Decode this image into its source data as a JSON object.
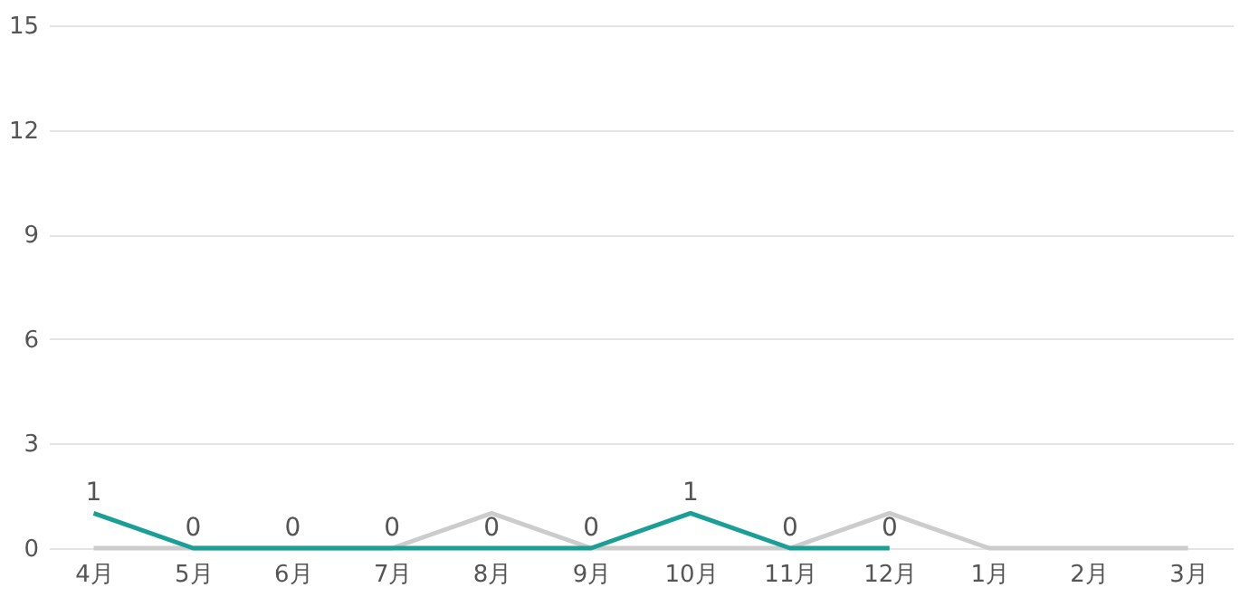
{
  "chart_data": {
    "type": "line",
    "categories": [
      "4月",
      "5月",
      "6月",
      "7月",
      "8月",
      "9月",
      "10月",
      "11月",
      "12月",
      "1月",
      "2月",
      "3月"
    ],
    "series": [
      {
        "color": "#cccccc",
        "values": [
          0,
          0,
          0,
          0,
          1,
          0,
          0,
          0,
          1,
          0,
          0,
          0
        ]
      },
      {
        "color": "#1a9e96",
        "values": [
          1,
          0,
          0,
          0,
          0,
          0,
          1,
          0,
          0,
          null,
          null,
          null
        ],
        "value_labels": [
          "1",
          "0",
          "0",
          "0",
          "0",
          "0",
          "1",
          "0",
          "0",
          null,
          null,
          null
        ]
      }
    ],
    "ylim": [
      0,
      15
    ],
    "yticks": [
      0,
      3,
      6,
      9,
      12,
      15
    ],
    "grid": "y",
    "marker": "none",
    "line_style": "solid"
  }
}
